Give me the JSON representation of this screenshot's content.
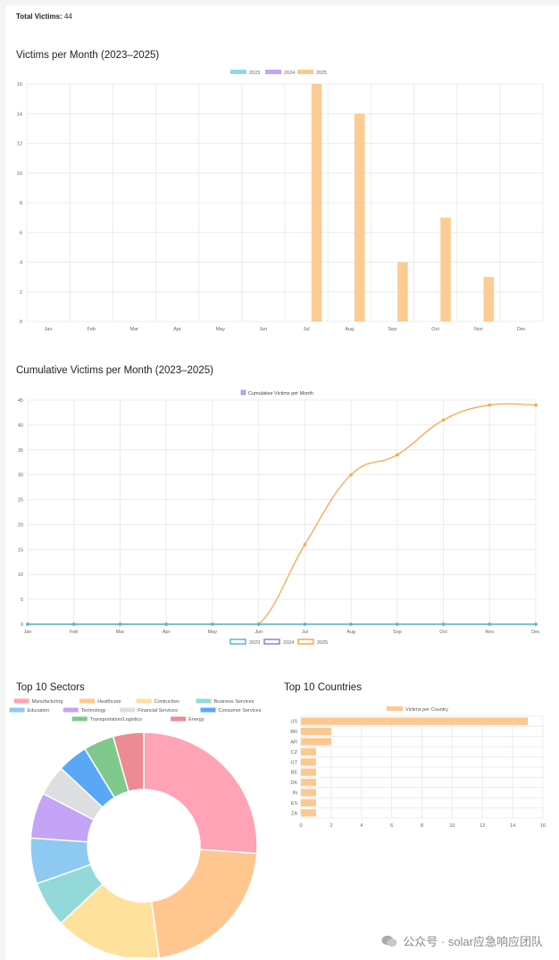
{
  "summary": {
    "label": "Total Victims:",
    "value": "44"
  },
  "headings": {
    "monthly": "Victims per Month (2023–2025)",
    "cumulative": "Cumulative Victims per Month (2023–2025)",
    "sectors": "Top 10 Sectors",
    "countries": "Top 10 Countries"
  },
  "watermark": "公众号 · solar应急响应团队",
  "colors": {
    "y2023": "#94d9d9",
    "y2024": "#c4a4f7",
    "y2025": "#fdc88e",
    "line2023": "#5ab8c9",
    "line2025": "#f5a94a"
  },
  "chart_data": [
    {
      "type": "bar",
      "title": "Victims per Month (2023–2025)",
      "categories": [
        "Jan",
        "Feb",
        "Mar",
        "Apr",
        "May",
        "Jun",
        "Jul",
        "Aug",
        "Sep",
        "Oct",
        "Nov",
        "Dec"
      ],
      "series": [
        {
          "name": "2023",
          "values": [
            0,
            0,
            0,
            0,
            0,
            0,
            0,
            0,
            0,
            0,
            0,
            0
          ]
        },
        {
          "name": "2024",
          "values": [
            0,
            0,
            0,
            0,
            0,
            0,
            0,
            0,
            0,
            0,
            0,
            0
          ]
        },
        {
          "name": "2025",
          "values": [
            0,
            0,
            0,
            0,
            0,
            0,
            16,
            14,
            4,
            7,
            3,
            0
          ]
        }
      ],
      "ylim": [
        0,
        16
      ],
      "yticks": [
        "0",
        "2",
        "4",
        "6",
        "8",
        "10",
        "12",
        "14",
        "16"
      ],
      "legend": "top"
    },
    {
      "type": "line",
      "title": "Cumulative Victims per Month (2023–2025)",
      "legend_top": "Cumulative Victims per Month",
      "categories": [
        "Jan",
        "Feb",
        "Mar",
        "Apr",
        "May",
        "Jun",
        "Jul",
        "Aug",
        "Sep",
        "Oct",
        "Nov",
        "Dec"
      ],
      "series": [
        {
          "name": "2023",
          "values": [
            0,
            0,
            0,
            0,
            0,
            0,
            0,
            0,
            0,
            0,
            0,
            0
          ]
        },
        {
          "name": "2024",
          "values": [
            0,
            0,
            0,
            0,
            0,
            0,
            0,
            0,
            0,
            0,
            0,
            0
          ]
        },
        {
          "name": "2025",
          "values": [
            0,
            0,
            0,
            0,
            0,
            0,
            16,
            30,
            34,
            41,
            44,
            44
          ]
        }
      ],
      "ylim": [
        0,
        45
      ],
      "yticks": [
        "0",
        "5",
        "10",
        "15",
        "20",
        "25",
        "30",
        "35",
        "40",
        "45"
      ],
      "legend": "bottom"
    },
    {
      "type": "pie",
      "title": "Top 10 Sectors",
      "labels": [
        "Manufacturing",
        "Healthcare",
        "Contruction",
        "Business Services",
        "Education",
        "Technology",
        "Financial Services",
        "Consumer Services",
        "Transportation/Logistics",
        "Energy"
      ],
      "values": [
        12,
        10,
        7,
        3,
        3,
        3,
        2,
        2,
        2,
        2
      ],
      "colors": [
        "#ffa3b5",
        "#ffc78f",
        "#ffe19e",
        "#94d9d9",
        "#8ec9f2",
        "#c4a4f7",
        "#dcdedf",
        "#5aa8f5",
        "#7fc98c",
        "#ee8a92"
      ]
    },
    {
      "type": "bar",
      "orientation": "horizontal",
      "title": "Top 10 Countries",
      "legend_label": "Victims per Country",
      "categories": [
        "US",
        "BR",
        "AR",
        "CZ",
        "GT",
        "BE",
        "DK",
        "IN",
        "ES",
        "ZA"
      ],
      "values": [
        15,
        2,
        2,
        1,
        1,
        1,
        1,
        1,
        1,
        1
      ],
      "xlim": [
        0,
        16
      ],
      "xticks": [
        "0",
        "2",
        "4",
        "6",
        "8",
        "10",
        "12",
        "14",
        "16"
      ]
    }
  ]
}
